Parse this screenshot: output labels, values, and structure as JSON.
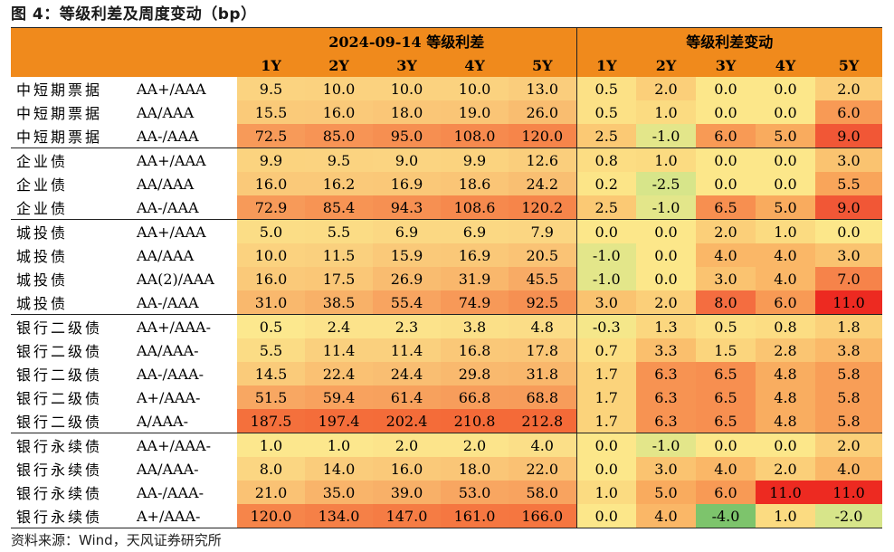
{
  "title": "图 4：等级利差及周度变动（bp）",
  "source": "资料来源：Wind，天风证券研究所",
  "header": {
    "group_left": "2024-09-14 等级利差",
    "group_right": "等级利差变动",
    "terms": [
      "1Y",
      "2Y",
      "3Y",
      "4Y",
      "5Y"
    ]
  },
  "rows": [
    {
      "cat": "中短期票据",
      "rating": "AA+/AAA",
      "spread": [
        "9.5",
        "10.0",
        "10.0",
        "10.0",
        "13.0"
      ],
      "change": [
        "0.5",
        "2.0",
        "0.0",
        "0.0",
        "2.0"
      ]
    },
    {
      "cat": "中短期票据",
      "rating": "AA/AAA",
      "spread": [
        "15.5",
        "16.0",
        "18.0",
        "19.0",
        "26.0"
      ],
      "change": [
        "0.5",
        "1.0",
        "0.0",
        "0.0",
        "6.0"
      ]
    },
    {
      "cat": "中短期票据",
      "rating": "AA-/AAA",
      "spread": [
        "72.5",
        "85.0",
        "95.0",
        "108.0",
        "120.0"
      ],
      "change": [
        "2.5",
        "-1.0",
        "6.0",
        "5.0",
        "9.0"
      ]
    },
    {
      "cat": "企业债",
      "rating": "AA+/AAA",
      "spread": [
        "9.9",
        "9.5",
        "9.0",
        "9.9",
        "12.6"
      ],
      "change": [
        "0.8",
        "1.0",
        "0.0",
        "0.0",
        "3.0"
      ],
      "group_start": true
    },
    {
      "cat": "企业债",
      "rating": "AA/AAA",
      "spread": [
        "16.0",
        "16.2",
        "16.9",
        "18.6",
        "24.2"
      ],
      "change": [
        "0.2",
        "-2.5",
        "0.0",
        "0.0",
        "5.5"
      ]
    },
    {
      "cat": "企业债",
      "rating": "AA-/AAA",
      "spread": [
        "72.9",
        "85.4",
        "94.3",
        "108.6",
        "120.2"
      ],
      "change": [
        "2.5",
        "-1.0",
        "6.5",
        "5.0",
        "9.0"
      ]
    },
    {
      "cat": "城投债",
      "rating": "AA+/AAA",
      "spread": [
        "5.0",
        "5.5",
        "6.9",
        "6.9",
        "7.9"
      ],
      "change": [
        "0.0",
        "0.0",
        "2.0",
        "1.0",
        "0.0"
      ],
      "group_start": true
    },
    {
      "cat": "城投债",
      "rating": "AA/AAA",
      "spread": [
        "10.0",
        "11.5",
        "15.9",
        "16.9",
        "20.5"
      ],
      "change": [
        "-1.0",
        "0.0",
        "4.0",
        "4.0",
        "3.0"
      ]
    },
    {
      "cat": "城投债",
      "rating": "AA(2)/AAA",
      "spread": [
        "16.0",
        "17.5",
        "26.9",
        "31.9",
        "45.5"
      ],
      "change": [
        "-1.0",
        "0.0",
        "3.0",
        "4.0",
        "7.0"
      ]
    },
    {
      "cat": "城投债",
      "rating": "AA-/AAA",
      "spread": [
        "31.0",
        "38.5",
        "55.4",
        "74.9",
        "92.5"
      ],
      "change": [
        "3.0",
        "2.0",
        "8.0",
        "6.0",
        "11.0"
      ]
    },
    {
      "cat": "银行二级债",
      "rating": "AA+/AAA-",
      "spread": [
        "0.5",
        "2.4",
        "2.3",
        "3.8",
        "4.8"
      ],
      "change": [
        "-0.3",
        "1.3",
        "0.5",
        "0.8",
        "1.8"
      ],
      "group_start": true
    },
    {
      "cat": "银行二级债",
      "rating": "AA/AAA-",
      "spread": [
        "5.5",
        "11.4",
        "11.4",
        "16.8",
        "17.8"
      ],
      "change": [
        "0.7",
        "3.3",
        "1.5",
        "2.8",
        "3.8"
      ]
    },
    {
      "cat": "银行二级债",
      "rating": "AA-/AAA-",
      "spread": [
        "14.5",
        "22.4",
        "24.4",
        "29.8",
        "31.8"
      ],
      "change": [
        "1.7",
        "6.3",
        "6.5",
        "4.8",
        "5.8"
      ]
    },
    {
      "cat": "银行二级债",
      "rating": "A+/AAA-",
      "spread": [
        "51.5",
        "59.4",
        "61.4",
        "66.8",
        "68.8"
      ],
      "change": [
        "1.7",
        "6.3",
        "6.5",
        "4.8",
        "5.8"
      ]
    },
    {
      "cat": "银行二级债",
      "rating": "A/AAA-",
      "spread": [
        "187.5",
        "197.4",
        "202.4",
        "210.8",
        "212.8"
      ],
      "change": [
        "1.7",
        "6.3",
        "6.5",
        "4.8",
        "5.8"
      ]
    },
    {
      "cat": "银行永续债",
      "rating": "AA+/AAA-",
      "spread": [
        "1.0",
        "1.0",
        "2.0",
        "2.0",
        "4.0"
      ],
      "change": [
        "0.0",
        "-1.0",
        "0.0",
        "0.0",
        "2.0"
      ],
      "group_start": true
    },
    {
      "cat": "银行永续债",
      "rating": "AA/AAA-",
      "spread": [
        "8.0",
        "14.0",
        "16.0",
        "18.0",
        "22.0"
      ],
      "change": [
        "0.0",
        "3.0",
        "4.0",
        "2.0",
        "4.0"
      ]
    },
    {
      "cat": "银行永续债",
      "rating": "AA-/AAA-",
      "spread": [
        "21.0",
        "35.0",
        "39.0",
        "53.0",
        "58.0"
      ],
      "change": [
        "1.0",
        "5.0",
        "6.0",
        "11.0",
        "11.0"
      ]
    },
    {
      "cat": "银行永续债",
      "rating": "A+/AAA-",
      "spread": [
        "120.0",
        "134.0",
        "147.0",
        "161.0",
        "166.0"
      ],
      "change": [
        "0.0",
        "4.0",
        "-4.0",
        "1.0",
        "-2.0"
      ]
    }
  ],
  "colors": {
    "header": "#f08a1c",
    "spread_low": "#fce88e",
    "spread_high": "#f46a38",
    "change_neg_strong": "#7dc46c",
    "change_neg": "#d7e58a",
    "change_zero": "#fce78a",
    "change_pos": "#f9a55a",
    "change_pos_strong": "#ed2a21"
  }
}
